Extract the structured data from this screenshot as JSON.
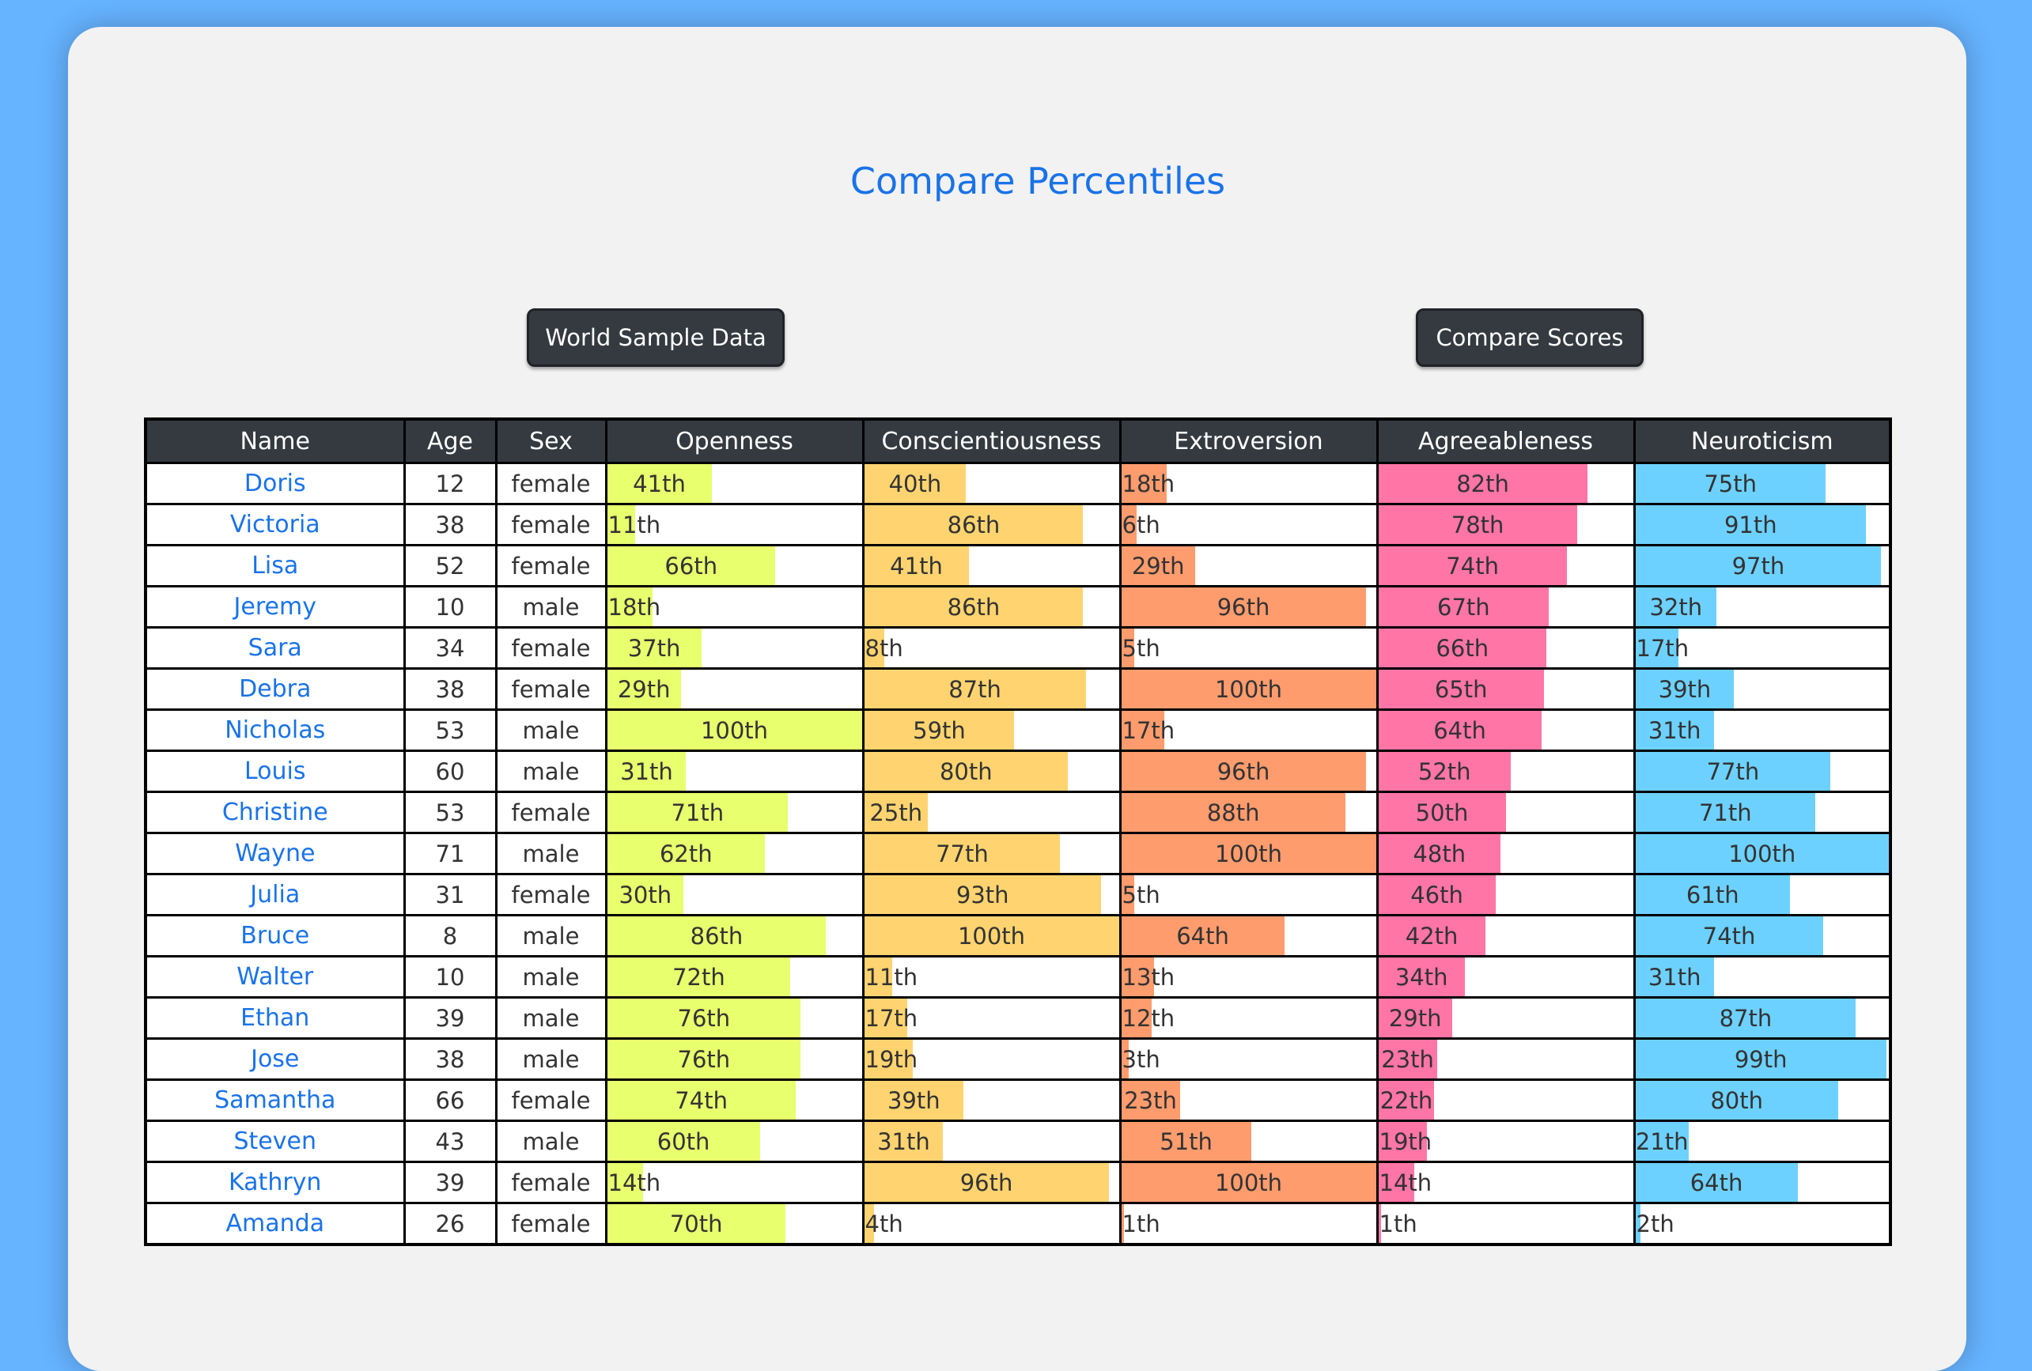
{
  "title": "Compare Percentiles",
  "buttons": {
    "world": "World Sample Data",
    "compare": "Compare Scores"
  },
  "columns": [
    "Name",
    "Age",
    "Sex",
    "Openness",
    "Conscientiousness",
    "Extroversion",
    "Agreeableness",
    "Neuroticism"
  ],
  "trait_colors": [
    "#e8ff6e",
    "#ffd470",
    "#ff9c6e",
    "#ff75a6",
    "#6dd1ff"
  ],
  "rows": [
    {
      "name": "Doris",
      "age": "12",
      "sex": "female",
      "scores": [
        41,
        40,
        18,
        82,
        75
      ],
      "labels": [
        "41th",
        "40th",
        "18th",
        "82th",
        "75th"
      ]
    },
    {
      "name": "Victoria",
      "age": "38",
      "sex": "female",
      "scores": [
        11,
        86,
        6,
        78,
        91
      ],
      "labels": [
        "11th",
        "86th",
        "6th",
        "78th",
        "91th"
      ]
    },
    {
      "name": "Lisa",
      "age": "52",
      "sex": "female",
      "scores": [
        66,
        41,
        29,
        74,
        97
      ],
      "labels": [
        "66th",
        "41th",
        "29th",
        "74th",
        "97th"
      ]
    },
    {
      "name": "Jeremy",
      "age": "10",
      "sex": "male",
      "scores": [
        18,
        86,
        96,
        67,
        32
      ],
      "labels": [
        "18th",
        "86th",
        "96th",
        "67th",
        "32th"
      ]
    },
    {
      "name": "Sara",
      "age": "34",
      "sex": "female",
      "scores": [
        37,
        8,
        5,
        66,
        17
      ],
      "labels": [
        "37th",
        "8th",
        "5th",
        "66th",
        "17th"
      ]
    },
    {
      "name": "Debra",
      "age": "38",
      "sex": "female",
      "scores": [
        29,
        87,
        100,
        65,
        39
      ],
      "labels": [
        "29th",
        "87th",
        "100th",
        "65th",
        "39th"
      ]
    },
    {
      "name": "Nicholas",
      "age": "53",
      "sex": "male",
      "scores": [
        100,
        59,
        17,
        64,
        31
      ],
      "labels": [
        "100th",
        "59th",
        "17th",
        "64th",
        "31th"
      ]
    },
    {
      "name": "Louis",
      "age": "60",
      "sex": "male",
      "scores": [
        31,
        80,
        96,
        52,
        77
      ],
      "labels": [
        "31th",
        "80th",
        "96th",
        "52th",
        "77th"
      ]
    },
    {
      "name": "Christine",
      "age": "53",
      "sex": "female",
      "scores": [
        71,
        25,
        88,
        50,
        71
      ],
      "labels": [
        "71th",
        "25th",
        "88th",
        "50th",
        "71th"
      ]
    },
    {
      "name": "Wayne",
      "age": "71",
      "sex": "male",
      "scores": [
        62,
        77,
        100,
        48,
        100
      ],
      "labels": [
        "62th",
        "77th",
        "100th",
        "48th",
        "100th"
      ]
    },
    {
      "name": "Julia",
      "age": "31",
      "sex": "female",
      "scores": [
        30,
        93,
        5,
        46,
        61
      ],
      "labels": [
        "30th",
        "93th",
        "5th",
        "46th",
        "61th"
      ]
    },
    {
      "name": "Bruce",
      "age": "8",
      "sex": "male",
      "scores": [
        86,
        100,
        64,
        42,
        74
      ],
      "labels": [
        "86th",
        "100th",
        "64th",
        "42th",
        "74th"
      ]
    },
    {
      "name": "Walter",
      "age": "10",
      "sex": "male",
      "scores": [
        72,
        11,
        13,
        34,
        31
      ],
      "labels": [
        "72th",
        "11th",
        "13th",
        "34th",
        "31th"
      ]
    },
    {
      "name": "Ethan",
      "age": "39",
      "sex": "male",
      "scores": [
        76,
        17,
        12,
        29,
        87
      ],
      "labels": [
        "76th",
        "17th",
        "12th",
        "29th",
        "87th"
      ]
    },
    {
      "name": "Jose",
      "age": "38",
      "sex": "male",
      "scores": [
        76,
        19,
        3,
        23,
        99
      ],
      "labels": [
        "76th",
        "19th",
        "3th",
        "23th",
        "99th"
      ]
    },
    {
      "name": "Samantha",
      "age": "66",
      "sex": "female",
      "scores": [
        74,
        39,
        23,
        22,
        80
      ],
      "labels": [
        "74th",
        "39th",
        "23th",
        "22th",
        "80th"
      ]
    },
    {
      "name": "Steven",
      "age": "43",
      "sex": "male",
      "scores": [
        60,
        31,
        51,
        19,
        21
      ],
      "labels": [
        "60th",
        "31th",
        "51th",
        "19th",
        "21th"
      ]
    },
    {
      "name": "Kathryn",
      "age": "39",
      "sex": "female",
      "scores": [
        14,
        96,
        100,
        14,
        64
      ],
      "labels": [
        "14th",
        "96th",
        "100th",
        "14th",
        "64th"
      ]
    },
    {
      "name": "Amanda",
      "age": "26",
      "sex": "female",
      "scores": [
        70,
        4,
        1,
        1,
        2
      ],
      "labels": [
        "70th",
        "4th",
        "1th",
        "1th",
        "2th"
      ]
    }
  ]
}
